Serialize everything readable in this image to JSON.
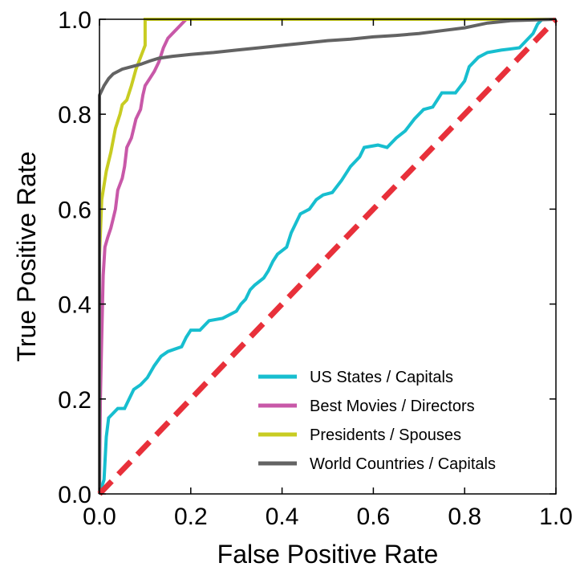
{
  "chart_data": {
    "type": "line",
    "title": "",
    "xlabel": "False Positive Rate",
    "ylabel": "True Positive Rate",
    "xlim": [
      0.0,
      1.0
    ],
    "ylim": [
      0.0,
      1.0
    ],
    "x_ticks": [
      "0.0",
      "0.2",
      "0.4",
      "0.6",
      "0.8",
      "1.0"
    ],
    "y_ticks": [
      "0.0",
      "0.2",
      "0.4",
      "0.6",
      "0.8",
      "1.0"
    ],
    "grid": false,
    "legend_position": "lower-right",
    "series": [
      {
        "name": "US States / Capitals",
        "color": "#17becf",
        "points": [
          [
            0.0,
            0.0
          ],
          [
            0.01,
            0.03
          ],
          [
            0.015,
            0.12
          ],
          [
            0.02,
            0.16
          ],
          [
            0.03,
            0.17
          ],
          [
            0.04,
            0.18
          ],
          [
            0.055,
            0.18
          ],
          [
            0.065,
            0.2
          ],
          [
            0.075,
            0.22
          ],
          [
            0.09,
            0.23
          ],
          [
            0.105,
            0.245
          ],
          [
            0.12,
            0.27
          ],
          [
            0.135,
            0.29
          ],
          [
            0.15,
            0.3
          ],
          [
            0.165,
            0.305
          ],
          [
            0.18,
            0.31
          ],
          [
            0.19,
            0.33
          ],
          [
            0.2,
            0.345
          ],
          [
            0.22,
            0.345
          ],
          [
            0.24,
            0.365
          ],
          [
            0.27,
            0.37
          ],
          [
            0.3,
            0.385
          ],
          [
            0.31,
            0.4
          ],
          [
            0.32,
            0.41
          ],
          [
            0.33,
            0.43
          ],
          [
            0.34,
            0.44
          ],
          [
            0.36,
            0.455
          ],
          [
            0.37,
            0.47
          ],
          [
            0.38,
            0.49
          ],
          [
            0.39,
            0.505
          ],
          [
            0.41,
            0.52
          ],
          [
            0.42,
            0.55
          ],
          [
            0.43,
            0.57
          ],
          [
            0.44,
            0.59
          ],
          [
            0.46,
            0.6
          ],
          [
            0.475,
            0.62
          ],
          [
            0.49,
            0.63
          ],
          [
            0.51,
            0.635
          ],
          [
            0.53,
            0.66
          ],
          [
            0.55,
            0.69
          ],
          [
            0.57,
            0.71
          ],
          [
            0.58,
            0.73
          ],
          [
            0.61,
            0.735
          ],
          [
            0.63,
            0.73
          ],
          [
            0.65,
            0.75
          ],
          [
            0.67,
            0.765
          ],
          [
            0.69,
            0.79
          ],
          [
            0.71,
            0.81
          ],
          [
            0.73,
            0.815
          ],
          [
            0.74,
            0.83
          ],
          [
            0.75,
            0.845
          ],
          [
            0.78,
            0.845
          ],
          [
            0.8,
            0.87
          ],
          [
            0.81,
            0.9
          ],
          [
            0.83,
            0.92
          ],
          [
            0.85,
            0.93
          ],
          [
            0.88,
            0.935
          ],
          [
            0.92,
            0.94
          ],
          [
            0.95,
            0.97
          ],
          [
            0.96,
            0.99
          ],
          [
            0.97,
            1.0
          ],
          [
            1.0,
            1.0
          ]
        ]
      },
      {
        "name": "Best Movies / Directors",
        "color": "#c858a8",
        "points": [
          [
            0.0,
            0.0
          ],
          [
            0.002,
            0.2
          ],
          [
            0.005,
            0.33
          ],
          [
            0.008,
            0.46
          ],
          [
            0.012,
            0.52
          ],
          [
            0.018,
            0.54
          ],
          [
            0.025,
            0.56
          ],
          [
            0.03,
            0.58
          ],
          [
            0.035,
            0.6
          ],
          [
            0.04,
            0.64
          ],
          [
            0.05,
            0.665
          ],
          [
            0.055,
            0.69
          ],
          [
            0.06,
            0.73
          ],
          [
            0.07,
            0.75
          ],
          [
            0.075,
            0.77
          ],
          [
            0.08,
            0.79
          ],
          [
            0.09,
            0.81
          ],
          [
            0.095,
            0.84
          ],
          [
            0.1,
            0.86
          ],
          [
            0.11,
            0.875
          ],
          [
            0.12,
            0.89
          ],
          [
            0.13,
            0.91
          ],
          [
            0.14,
            0.94
          ],
          [
            0.15,
            0.96
          ],
          [
            0.16,
            0.97
          ],
          [
            0.17,
            0.98
          ],
          [
            0.18,
            0.99
          ],
          [
            0.19,
            1.0
          ],
          [
            1.0,
            1.0
          ]
        ]
      },
      {
        "name": "Presidents / Spouses",
        "color": "#c8cc22",
        "points": [
          [
            0.0,
            0.0
          ],
          [
            0.0,
            0.5
          ],
          [
            0.005,
            0.62
          ],
          [
            0.015,
            0.68
          ],
          [
            0.025,
            0.72
          ],
          [
            0.035,
            0.77
          ],
          [
            0.045,
            0.8
          ],
          [
            0.05,
            0.82
          ],
          [
            0.06,
            0.83
          ],
          [
            0.07,
            0.86
          ],
          [
            0.08,
            0.895
          ],
          [
            0.09,
            0.92
          ],
          [
            0.1,
            0.945
          ],
          [
            0.1,
            1.0
          ],
          [
            1.0,
            1.0
          ]
        ]
      },
      {
        "name": "World Countries / Capitals",
        "color": "#636363",
        "points": [
          [
            0.0,
            0.0
          ],
          [
            0.0,
            0.84
          ],
          [
            0.01,
            0.86
          ],
          [
            0.02,
            0.875
          ],
          [
            0.03,
            0.885
          ],
          [
            0.04,
            0.89
          ],
          [
            0.05,
            0.895
          ],
          [
            0.07,
            0.9
          ],
          [
            0.09,
            0.905
          ],
          [
            0.11,
            0.912
          ],
          [
            0.13,
            0.918
          ],
          [
            0.16,
            0.922
          ],
          [
            0.2,
            0.926
          ],
          [
            0.25,
            0.93
          ],
          [
            0.3,
            0.935
          ],
          [
            0.35,
            0.94
          ],
          [
            0.4,
            0.945
          ],
          [
            0.45,
            0.95
          ],
          [
            0.5,
            0.955
          ],
          [
            0.55,
            0.958
          ],
          [
            0.6,
            0.963
          ],
          [
            0.65,
            0.966
          ],
          [
            0.7,
            0.97
          ],
          [
            0.75,
            0.976
          ],
          [
            0.8,
            0.982
          ],
          [
            0.85,
            0.992
          ],
          [
            0.9,
            0.997
          ],
          [
            1.0,
            1.0
          ]
        ]
      },
      {
        "name": "",
        "color": "#e8303a",
        "dashed": true,
        "points": [
          [
            0.0,
            0.0
          ],
          [
            1.0,
            1.0
          ]
        ]
      }
    ],
    "legend": [
      {
        "label": "US States / Capitals",
        "color": "#17becf"
      },
      {
        "label": "Best Movies / Directors",
        "color": "#c858a8"
      },
      {
        "label": "Presidents / Spouses",
        "color": "#c8cc22"
      },
      {
        "label": "World Countries / Capitals",
        "color": "#636363"
      }
    ]
  }
}
